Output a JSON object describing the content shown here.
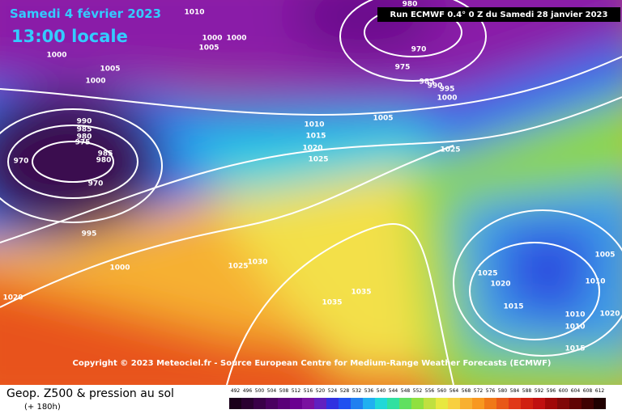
{
  "header": {
    "date": "Samedi 4 février 2023",
    "time": "13:00 locale",
    "run": "Run ECMWF 0.4° 0 Z du Samedi 28 janvier 2023"
  },
  "copyright": "Copyright © 2023 Meteociel.fr - Source European Centre for Medium-Range Weather Forecasts (ECMWF)",
  "footer": {
    "title": "Geop. Z500 & pression au sol",
    "lead": "(+ 180h)"
  },
  "isobar_labels": [
    1010,
    1000,
    1000,
    1005,
    1005,
    1000,
    1000,
    970,
    980,
    975,
    985,
    990,
    995,
    1000,
    1005,
    1010,
    1015,
    1020,
    1025,
    990,
    985,
    980,
    975,
    985,
    980,
    970,
    970,
    995,
    1000,
    1020,
    1025,
    1025,
    1030,
    1035,
    1035,
    1025,
    1020,
    1015,
    1005,
    1010,
    1010,
    1020,
    1010,
    1015
  ],
  "scale": [
    492,
    496,
    500,
    504,
    508,
    512,
    516,
    520,
    524,
    528,
    532,
    536,
    540,
    544,
    548,
    552,
    556,
    560,
    564,
    568,
    572,
    576,
    580,
    584,
    588,
    592,
    596,
    600,
    604,
    608,
    612
  ]
}
